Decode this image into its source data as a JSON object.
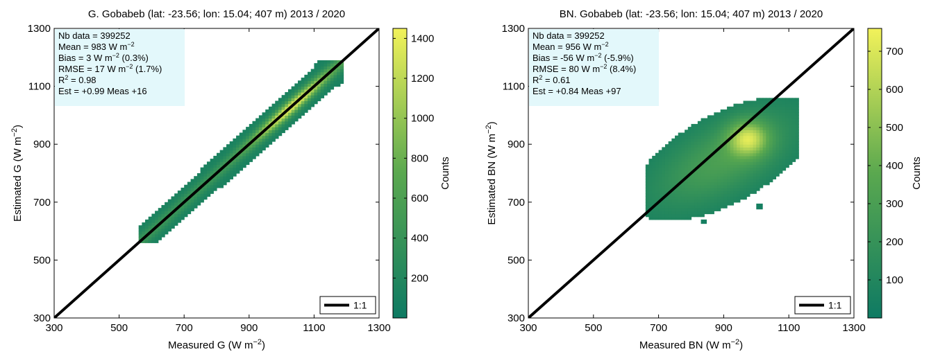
{
  "chart_data": [
    {
      "type": "heatmap",
      "title": "G. Gobabeb (lat: -23.56; lon: 15.04; 407 m) 2013 / 2020",
      "xlabel_main": "Measured G (W m",
      "xlabel_sup": "−2",
      "xlabel_end": ")",
      "ylabel_main": "Estimated G (W m",
      "ylabel_sup": "−2",
      "ylabel_end": ")",
      "xlim": [
        300,
        1300
      ],
      "ylim": [
        300,
        1300
      ],
      "xticks": [
        "300",
        "500",
        "700",
        "900",
        "1100",
        "1300"
      ],
      "yticks": [
        "300",
        "500",
        "700",
        "900",
        "1100",
        "1300"
      ],
      "colorbar": {
        "label": "Counts",
        "range": [
          0,
          1450
        ],
        "ticks": [
          "200",
          "400",
          "600",
          "800",
          "1000",
          "1200",
          "1400"
        ]
      },
      "legend": {
        "label": "1:1",
        "position": "bottom-right"
      },
      "stats": {
        "nb_data": "Nb data = 399252",
        "mean": "Mean    = 983 W m",
        "bias": "Bias      = 3  W m",
        "bias_suffix": " (0.3%)",
        "rmse": "RMSE   = 17   W m",
        "rmse_suffix": " (1.7%)",
        "r2_label": "R",
        "r2_sup": "2",
        "r2_value": "      = 0.98",
        "est": "Est  = +0.99 Meas +16",
        "unit_sup": "−2"
      },
      "fit": {
        "slope": 0.99,
        "intercept": 16
      },
      "series": [
        {
          "name": "1:1",
          "x": [
            300,
            1300
          ],
          "y": [
            300,
            1300
          ]
        }
      ]
    },
    {
      "type": "heatmap",
      "title": "BN. Gobabeb (lat: -23.56; lon: 15.04; 407 m) 2013 / 2020",
      "xlabel_main": "Measured BN (W m",
      "xlabel_sup": "−2",
      "xlabel_end": ")",
      "ylabel_main": "Estimated BN (W m",
      "ylabel_sup": "−2",
      "ylabel_end": ")",
      "xlim": [
        300,
        1300
      ],
      "ylim": [
        300,
        1300
      ],
      "xticks": [
        "300",
        "500",
        "700",
        "900",
        "1100",
        "1300"
      ],
      "yticks": [
        "300",
        "500",
        "700",
        "900",
        "1100",
        "1300"
      ],
      "colorbar": {
        "label": "Counts",
        "range": [
          0,
          760
        ],
        "ticks": [
          "100",
          "200",
          "300",
          "400",
          "500",
          "600",
          "700"
        ]
      },
      "legend": {
        "label": "1:1",
        "position": "bottom-right"
      },
      "stats": {
        "nb_data": "Nb data = 399252",
        "mean": "Mean    = 956 W m",
        "bias": "Bias      = -56  W m",
        "bias_suffix": " (-5.9%)",
        "rmse": "RMSE   = 80   W m",
        "rmse_suffix": " (8.4%)",
        "r2_label": "R",
        "r2_sup": "2",
        "r2_value": "      = 0.61",
        "est": "Est  = +0.84 Meas +97",
        "unit_sup": "−2"
      },
      "fit": {
        "slope": 0.84,
        "intercept": 97
      },
      "series": [
        {
          "name": "1:1",
          "x": [
            300,
            1300
          ],
          "y": [
            300,
            1300
          ]
        }
      ]
    }
  ],
  "colors": {
    "low": "#0e7a63",
    "mid": "#5aa84f",
    "high": "#f2f25a",
    "stats_box": "#e3f8fb",
    "line": "#000000"
  }
}
